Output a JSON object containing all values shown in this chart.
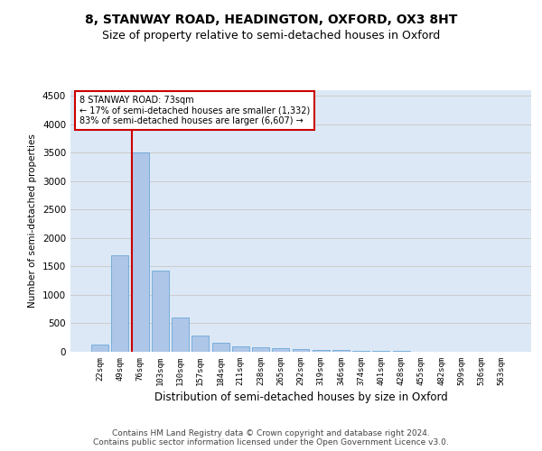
{
  "title": "8, STANWAY ROAD, HEADINGTON, OXFORD, OX3 8HT",
  "subtitle": "Size of property relative to semi-detached houses in Oxford",
  "xlabel": "Distribution of semi-detached houses by size in Oxford",
  "ylabel": "Number of semi-detached properties",
  "footer_line1": "Contains HM Land Registry data © Crown copyright and database right 2024.",
  "footer_line2": "Contains public sector information licensed under the Open Government Licence v3.0.",
  "categories": [
    "22sqm",
    "49sqm",
    "76sqm",
    "103sqm",
    "130sqm",
    "157sqm",
    "184sqm",
    "211sqm",
    "238sqm",
    "265sqm",
    "292sqm",
    "319sqm",
    "346sqm",
    "374sqm",
    "401sqm",
    "428sqm",
    "455sqm",
    "482sqm",
    "509sqm",
    "536sqm",
    "563sqm"
  ],
  "values": [
    120,
    1700,
    3500,
    1430,
    610,
    290,
    155,
    100,
    85,
    60,
    50,
    35,
    25,
    15,
    10,
    8,
    5,
    4,
    3,
    2,
    2
  ],
  "bar_color": "#aec6e8",
  "bar_edge_color": "#5a9fd4",
  "vline_x_index": 2,
  "vline_color": "#cc0000",
  "annotation_line1": "8 STANWAY ROAD: 73sqm",
  "annotation_line2": "← 17% of semi-detached houses are smaller (1,332)",
  "annotation_line3": "83% of semi-detached houses are larger (6,607) →",
  "annotation_box_color": "#ffffff",
  "annotation_box_edge_color": "#cc0000",
  "ylim": [
    0,
    4600
  ],
  "yticks": [
    0,
    500,
    1000,
    1500,
    2000,
    2500,
    3000,
    3500,
    4000,
    4500
  ],
  "grid_color": "#cccccc",
  "bg_color": "#dce8f5",
  "title_fontsize": 10,
  "subtitle_fontsize": 9,
  "footer_fontsize": 6.5
}
